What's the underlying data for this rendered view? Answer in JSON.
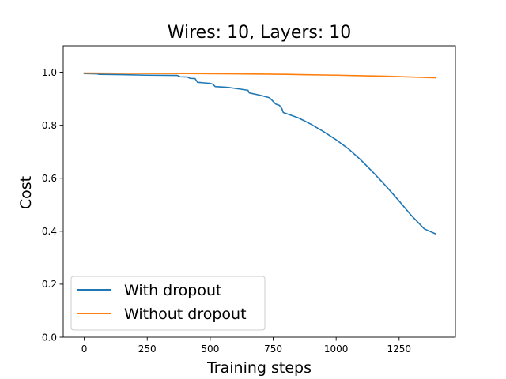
{
  "chart_data": {
    "type": "line",
    "title": "Wires: 10, Layers: 10",
    "xlabel": "Training steps",
    "ylabel": "Cost",
    "xlim": [
      -83.5,
      1473.5
    ],
    "ylim": [
      0.0,
      1.1
    ],
    "xticks": [
      0,
      250,
      500,
      750,
      1000,
      1250
    ],
    "yticks": [
      0.0,
      0.2,
      0.4,
      0.6,
      0.8,
      1.0
    ],
    "grid": false,
    "legend_position": "lower-left",
    "series": [
      {
        "name": "With dropout",
        "color": "#1f77b4",
        "points": [
          [
            0,
            0.995
          ],
          [
            50,
            0.994
          ],
          [
            60,
            0.992
          ],
          [
            150,
            0.991
          ],
          [
            250,
            0.989
          ],
          [
            370,
            0.988
          ],
          [
            380,
            0.983
          ],
          [
            410,
            0.982
          ],
          [
            420,
            0.977
          ],
          [
            440,
            0.976
          ],
          [
            450,
            0.962
          ],
          [
            500,
            0.958
          ],
          [
            510,
            0.955
          ],
          [
            520,
            0.946
          ],
          [
            570,
            0.943
          ],
          [
            600,
            0.939
          ],
          [
            650,
            0.932
          ],
          [
            655,
            0.922
          ],
          [
            700,
            0.913
          ],
          [
            735,
            0.904
          ],
          [
            745,
            0.895
          ],
          [
            760,
            0.88
          ],
          [
            775,
            0.875
          ],
          [
            785,
            0.862
          ],
          [
            790,
            0.848
          ],
          [
            850,
            0.828
          ],
          [
            900,
            0.804
          ],
          [
            950,
            0.776
          ],
          [
            1000,
            0.745
          ],
          [
            1050,
            0.71
          ],
          [
            1090,
            0.676
          ],
          [
            1100,
            0.667
          ],
          [
            1150,
            0.619
          ],
          [
            1200,
            0.568
          ],
          [
            1250,
            0.514
          ],
          [
            1300,
            0.458
          ],
          [
            1350,
            0.409
          ],
          [
            1395,
            0.39
          ]
        ]
      },
      {
        "name": "Without dropout",
        "color": "#ff7f0e",
        "points": [
          [
            0,
            0.997
          ],
          [
            200,
            0.996
          ],
          [
            400,
            0.995
          ],
          [
            600,
            0.994
          ],
          [
            800,
            0.992
          ],
          [
            1000,
            0.989
          ],
          [
            1100,
            0.987
          ],
          [
            1200,
            0.985
          ],
          [
            1300,
            0.982
          ],
          [
            1395,
            0.979
          ]
        ]
      }
    ]
  }
}
